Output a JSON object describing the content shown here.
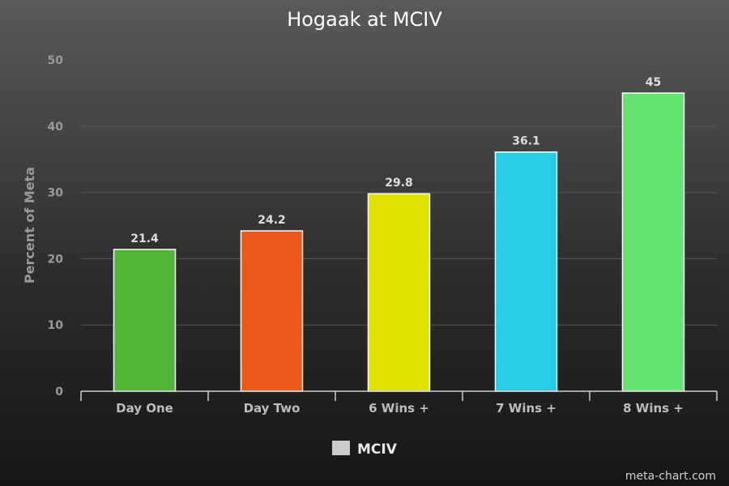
{
  "chart_data": {
    "type": "bar",
    "title": "Hogaak at MCIV",
    "ylabel": "Percent of Meta",
    "xlabel": "",
    "categories": [
      "Day One",
      "Day Two",
      "6 Wins +",
      "7 Wins +",
      "8 Wins +"
    ],
    "series": [
      {
        "name": "MCIV",
        "values": [
          21.4,
          24.2,
          29.8,
          36.1,
          45
        ]
      }
    ],
    "data_labels": [
      "21.4",
      "24.2",
      "29.8",
      "36.1",
      "45"
    ],
    "bar_colors": [
      "#52b535",
      "#ea5a1c",
      "#dfe000",
      "#26cde5",
      "#62e46f"
    ],
    "ylim": [
      0,
      50
    ],
    "yticks": [
      0,
      10,
      20,
      30,
      40,
      50
    ],
    "grid": true,
    "legend_placement": "bottom-center",
    "legend_color": "#cccccc"
  },
  "footer": {
    "credit": "meta-chart.com"
  }
}
